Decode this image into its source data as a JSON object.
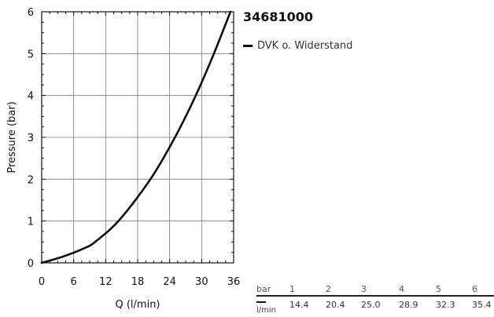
{
  "chart_data": {
    "type": "line",
    "title": "34681000",
    "xlabel": "Q (l/min)",
    "ylabel": "Pressure (bar)",
    "xlim": [
      0,
      36
    ],
    "ylim": [
      0,
      6
    ],
    "x_ticks": [
      0,
      6,
      12,
      18,
      24,
      30,
      36
    ],
    "y_ticks": [
      0,
      1,
      2,
      3,
      4,
      5,
      6
    ],
    "grid": true,
    "legend_position": "top-right outside",
    "series": [
      {
        "name": "DVK o. Widerstand",
        "color": "#111111",
        "x": [
          0,
          4,
          8,
          10,
          14.4,
          20.4,
          25.0,
          28.9,
          32.3,
          35.4
        ],
        "y": [
          0,
          0.15,
          0.35,
          0.5,
          1,
          2,
          3,
          4,
          5,
          6
        ]
      }
    ]
  },
  "table": {
    "header_label": "bar",
    "unit_label": "l/min",
    "pressures": [
      "1",
      "2",
      "3",
      "4",
      "5",
      "6"
    ],
    "flows": [
      "14.4",
      "20.4",
      "25.0",
      "28.9",
      "32.3",
      "35.4"
    ]
  }
}
